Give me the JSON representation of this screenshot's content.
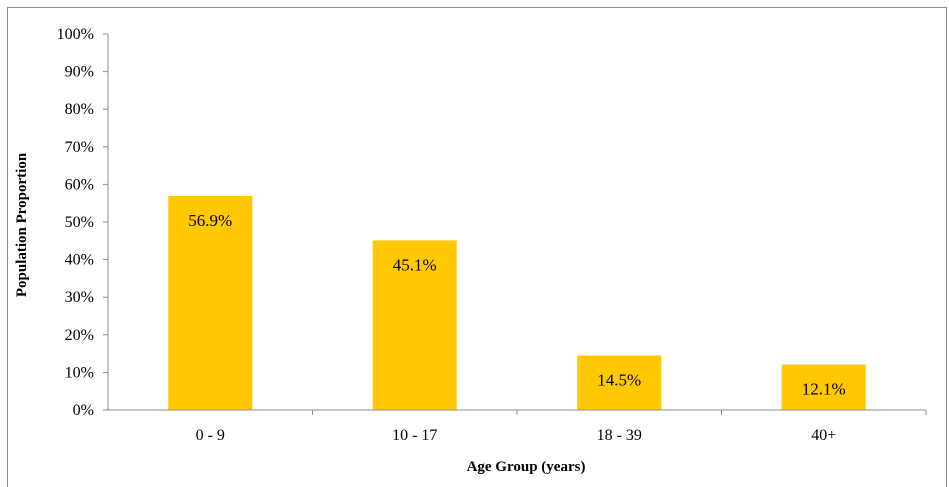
{
  "chart_data": {
    "type": "bar",
    "title": "",
    "xlabel": "Age Group (years)",
    "ylabel": "Population Proportion",
    "categories": [
      "0 - 9",
      "10 - 17",
      "18 - 39",
      "40+"
    ],
    "values": [
      56.9,
      45.1,
      14.5,
      12.1
    ],
    "value_labels": [
      "56.9%",
      "45.1%",
      "14.5%",
      "12.1%"
    ],
    "ylim": [
      0,
      100
    ],
    "yticks": [
      "0%",
      "10%",
      "20%",
      "30%",
      "40%",
      "50%",
      "60%",
      "70%",
      "80%",
      "90%",
      "100%"
    ],
    "grid": false,
    "legend": "none",
    "bar_color": "#FFC800"
  }
}
